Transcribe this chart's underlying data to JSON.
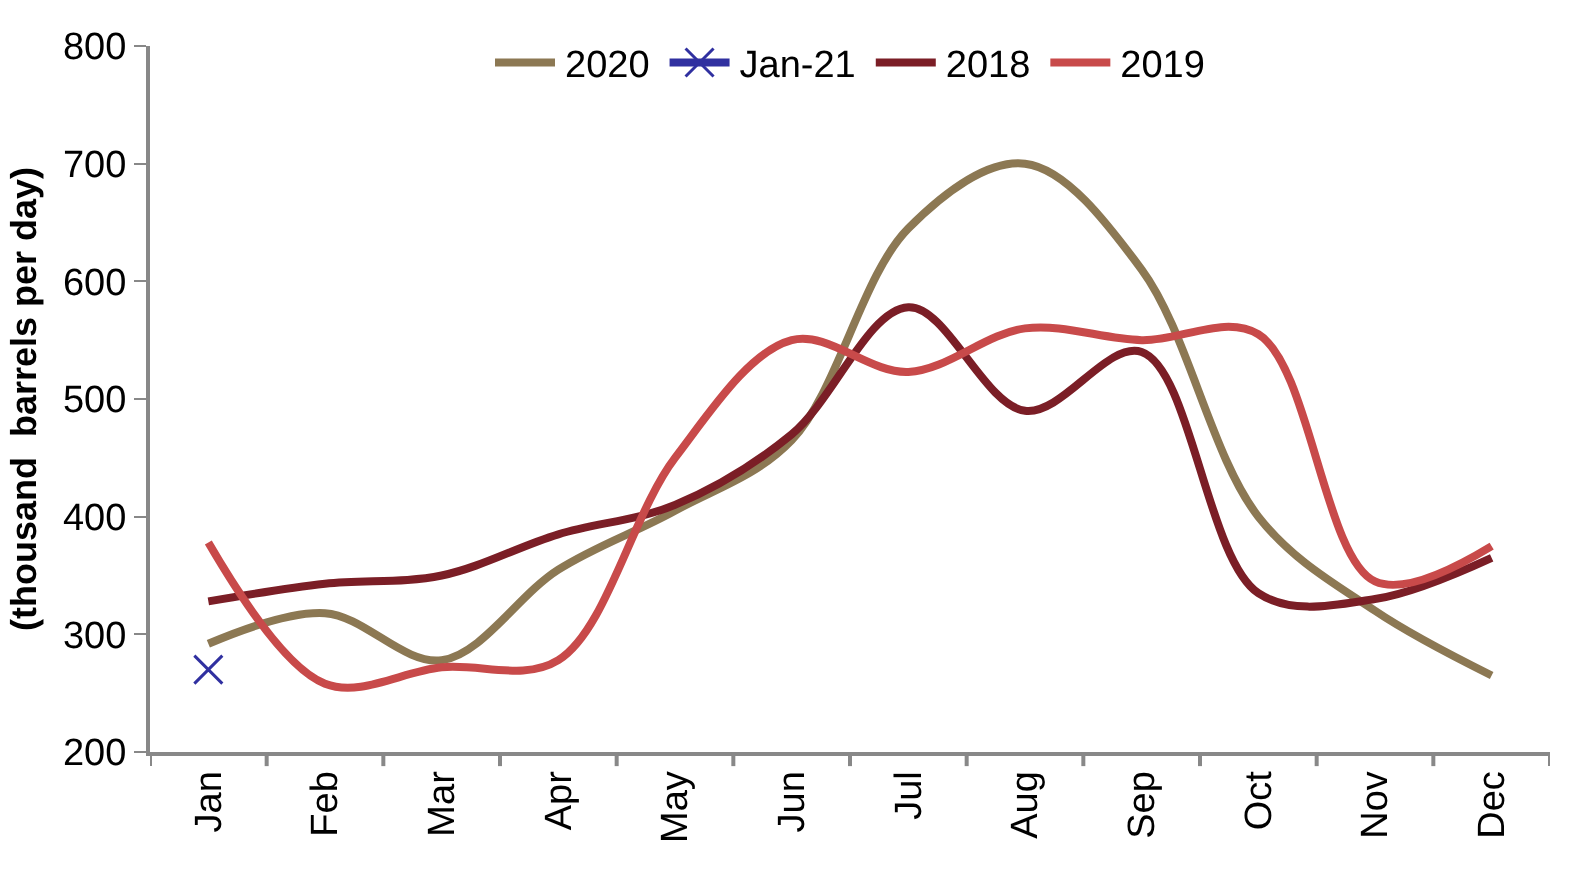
{
  "chart_data": {
    "type": "line",
    "ylabel": "(thousand  barrels per day)",
    "categories": [
      "Jan",
      "Feb",
      "Mar",
      "Apr",
      "May",
      "Jun",
      "Jul",
      "Aug",
      "Sep",
      "Oct",
      "Nov",
      "Dec"
    ],
    "series": [
      {
        "name": "2020",
        "color": "#8c7853",
        "values": [
          292,
          318,
          278,
          355,
          405,
          465,
          645,
          700,
          610,
          400,
          320,
          265
        ]
      },
      {
        "name": "Jan-21",
        "color": "#3030a0",
        "marker": "cross",
        "values": [
          270,
          null,
          null,
          null,
          null,
          null,
          null,
          null,
          null,
          null,
          null,
          null
        ]
      },
      {
        "name": "2018",
        "color": "#7b1e26",
        "values": [
          328,
          343,
          350,
          385,
          410,
          470,
          578,
          490,
          540,
          335,
          330,
          365
        ]
      },
      {
        "name": "2019",
        "color": "#c84a4a",
        "values": [
          378,
          258,
          272,
          278,
          450,
          550,
          523,
          560,
          550,
          555,
          345,
          375
        ]
      }
    ],
    "ylim": [
      200,
      800
    ],
    "yticks": [
      200,
      300,
      400,
      500,
      600,
      700,
      800
    ],
    "grid": false,
    "legend": "top",
    "marker": "none",
    "line_style": "solid"
  }
}
